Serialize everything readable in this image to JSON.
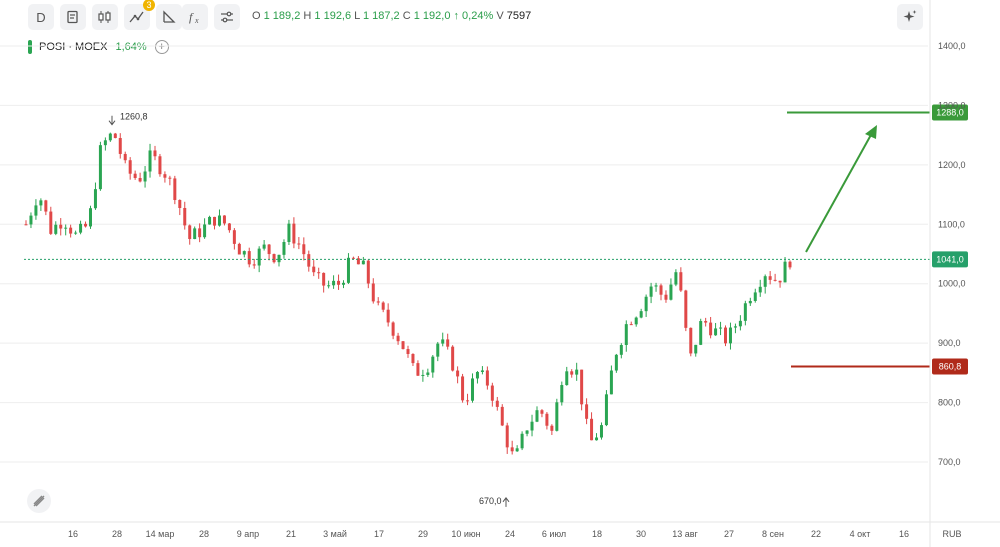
{
  "toolbar": {
    "interval": "D",
    "indicator_badge": "3",
    "buttons": [
      {
        "name": "interval-button",
        "icon": "D"
      },
      {
        "name": "note-icon"
      },
      {
        "name": "candles-icon"
      },
      {
        "name": "indicators-icon"
      },
      {
        "name": "drawing-icon"
      },
      {
        "name": "fx-icon",
        "label": "fx"
      },
      {
        "name": "settings-icon"
      }
    ]
  },
  "ohlc": {
    "o_label": "O",
    "o_value": "1 189,2",
    "h_label": "H",
    "h_value": "1 192,6",
    "l_label": "L",
    "l_value": "1 187,2",
    "c_label": "C",
    "c_value": "1 192,0",
    "change": "↑ 0,24%",
    "v_label": "V",
    "v_value": "7597"
  },
  "legend": {
    "symbol": "POSI · MOEX",
    "change": "1,64%",
    "add_symbol": "+"
  },
  "colors": {
    "up": "#2aa552",
    "down": "#e04848",
    "target_up": "#3a9a3a",
    "target_down": "#b02a1a",
    "current": "#26a06a"
  },
  "chart_data": {
    "type": "candlestick",
    "currency": "RUB",
    "y_ticks": [
      "1400,0",
      "1300,0",
      "1200,0",
      "1100,0",
      "1000,0",
      "900,0",
      "800,0",
      "700,0"
    ],
    "y_tick_values": [
      1400,
      1300,
      1200,
      1100,
      1000,
      900,
      800,
      700
    ],
    "ylim": [
      625,
      1440
    ],
    "x_ticks": [
      "16",
      "28",
      "14 мар",
      "28",
      "9 апр",
      "21",
      "3 май",
      "17",
      "29",
      "10 июн",
      "24",
      "6 июл",
      "18",
      "30",
      "13 авг",
      "27",
      "8 сен",
      "22",
      "4 окт",
      "16"
    ],
    "annotations": {
      "high": "1260,8",
      "high_value": 1260.8,
      "low": "670,0",
      "low_value": 670.0
    },
    "levels": {
      "target": {
        "label": "1288,0",
        "value": 1288
      },
      "current": {
        "label": "1041,0",
        "value": 1041
      },
      "stop": {
        "label": "860,8",
        "value": 860.8
      }
    },
    "price_path": [
      1100,
      1155,
      1090,
      1110,
      1080,
      1100,
      1230,
      1255,
      1190,
      1175,
      1215,
      1190,
      1150,
      1075,
      1090,
      1110,
      1100,
      1060,
      1040,
      1060,
      1045,
      1090,
      1060,
      1010,
      995,
      1000,
      1040,
      1025,
      960,
      935,
      900,
      850,
      860,
      905,
      870,
      800,
      850,
      830,
      760,
      700,
      760,
      790,
      750,
      870,
      850,
      730,
      760,
      880,
      935,
      960,
      1000,
      975,
      1025,
      870,
      940,
      920,
      905,
      945,
      990,
      1020,
      1005,
      1041
    ]
  }
}
